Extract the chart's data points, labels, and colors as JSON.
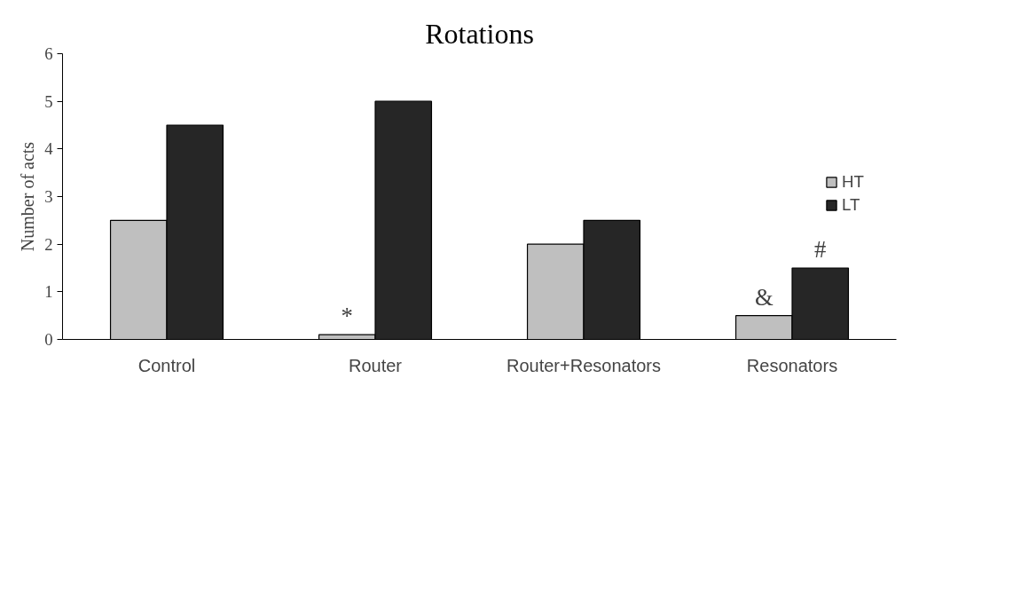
{
  "chart_data": {
    "type": "bar",
    "title": "Rotations",
    "ylabel": "Number of acts",
    "categories": [
      "Control",
      "Router",
      "Router+Resonators",
      "Resonators"
    ],
    "series": [
      {
        "name": "HT",
        "color": "#bfbfbf",
        "values": [
          2.5,
          0.1,
          2,
          0.5
        ]
      },
      {
        "name": "LT",
        "color": "#262626",
        "values": [
          4.5,
          5,
          2.5,
          1.5
        ]
      }
    ],
    "ylim": [
      0,
      6
    ],
    "yticks": [
      0,
      1,
      2,
      3,
      4,
      5,
      6
    ],
    "grid": false,
    "legend": "right",
    "annotations": [
      {
        "text": "*",
        "x": "Router",
        "y": 0.1
      },
      {
        "text": "&",
        "x": "Resonators",
        "y": 0.5
      },
      {
        "text": "#",
        "x": "Resonators",
        "y": 1.5
      }
    ]
  }
}
